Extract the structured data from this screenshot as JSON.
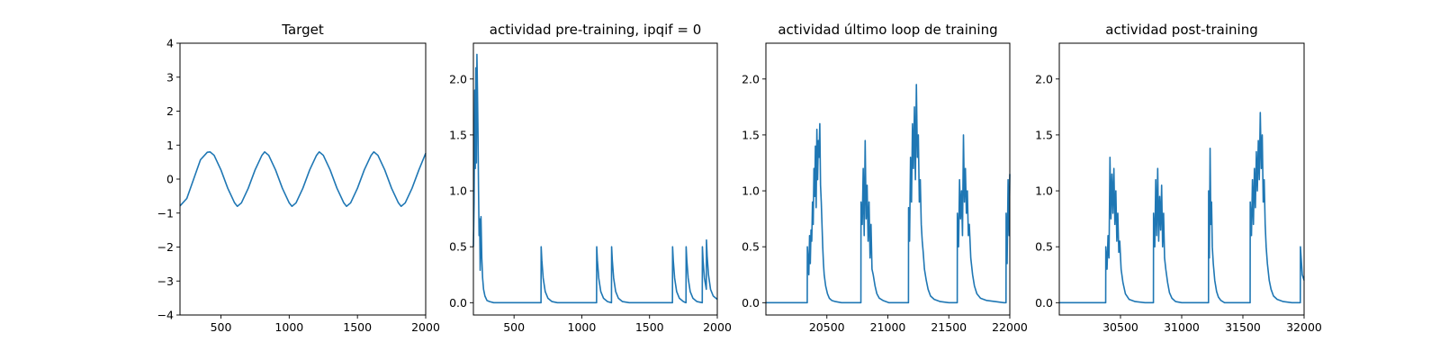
{
  "chart_data": [
    {
      "type": "line",
      "title": "Target",
      "xlim": [
        200,
        2000
      ],
      "ylim": [
        -4,
        4
      ],
      "xticks": [
        500,
        1000,
        1500,
        2000
      ],
      "yticks": [
        -4,
        -3,
        -2,
        -1,
        0,
        1,
        2,
        3,
        4
      ],
      "x": [
        200,
        250,
        300,
        350,
        400,
        420,
        450,
        500,
        550,
        600,
        620,
        650,
        700,
        750,
        800,
        820,
        850,
        900,
        950,
        1000,
        1020,
        1050,
        1100,
        1150,
        1200,
        1220,
        1250,
        1300,
        1350,
        1400,
        1420,
        1450,
        1500,
        1550,
        1600,
        1620,
        1650,
        1700,
        1750,
        1800,
        1820,
        1850,
        1900,
        1950,
        2000
      ],
      "series": [
        {
          "values": [
            -0.79,
            -0.57,
            0.0,
            0.57,
            0.79,
            0.8,
            0.7,
            0.27,
            -0.27,
            -0.7,
            -0.8,
            -0.7,
            -0.27,
            0.27,
            0.7,
            0.8,
            0.7,
            0.27,
            -0.27,
            -0.7,
            -0.8,
            -0.7,
            -0.27,
            0.27,
            0.7,
            0.8,
            0.7,
            0.27,
            -0.27,
            -0.7,
            -0.8,
            -0.7,
            -0.27,
            0.27,
            0.7,
            0.8,
            0.7,
            0.27,
            -0.27,
            -0.7,
            -0.8,
            -0.7,
            -0.27,
            0.27,
            0.76
          ]
        }
      ]
    },
    {
      "type": "line",
      "title": "actividad pre-training, ipqif = 0",
      "xlim": [
        200,
        2000
      ],
      "ylim": [
        -0.11,
        2.32
      ],
      "xticks": [
        500,
        1000,
        1500,
        2000
      ],
      "yticks": [
        0.0,
        0.5,
        1.0,
        1.5,
        2.0
      ],
      "x": [
        200,
        205,
        210,
        214,
        218,
        222,
        226,
        230,
        234,
        238,
        242,
        246,
        250,
        256,
        262,
        268,
        275,
        285,
        300,
        320,
        350,
        400,
        500,
        600,
        699,
        700,
        705,
        715,
        730,
        750,
        780,
        820,
        900,
        1000,
        1109,
        1110,
        1115,
        1125,
        1140,
        1160,
        1190,
        1219,
        1220,
        1225,
        1235,
        1250,
        1270,
        1300,
        1350,
        1450,
        1550,
        1669,
        1670,
        1675,
        1685,
        1700,
        1720,
        1750,
        1769,
        1770,
        1775,
        1785,
        1800,
        1820,
        1850,
        1889,
        1890,
        1895,
        1905,
        1919,
        1920,
        1925,
        1935,
        1950,
        1970,
        2000
      ],
      "series": [
        {
          "values": [
            0.5,
            0.9,
            1.9,
            1.2,
            2.1,
            1.25,
            2.22,
            1.9,
            1.5,
            1.0,
            0.6,
            0.75,
            0.29,
            0.77,
            0.4,
            0.22,
            0.12,
            0.06,
            0.02,
            0.01,
            0.0,
            0.0,
            0.0,
            0.0,
            0.0,
            0.5,
            0.38,
            0.22,
            0.1,
            0.04,
            0.01,
            0.0,
            0.0,
            0.0,
            0.0,
            0.5,
            0.38,
            0.22,
            0.1,
            0.04,
            0.01,
            0.0,
            0.5,
            0.38,
            0.22,
            0.1,
            0.04,
            0.01,
            0.0,
            0.0,
            0.0,
            0.0,
            0.5,
            0.38,
            0.22,
            0.1,
            0.04,
            0.01,
            0.0,
            0.5,
            0.38,
            0.22,
            0.1,
            0.04,
            0.01,
            0.0,
            0.5,
            0.38,
            0.22,
            0.12,
            0.56,
            0.42,
            0.25,
            0.12,
            0.06,
            0.03
          ]
        }
      ]
    },
    {
      "type": "line",
      "title": "actividad último loop de training",
      "xlim": [
        20000,
        22000
      ],
      "ylim": [
        -0.11,
        2.32
      ],
      "xticks": [
        20500,
        21000,
        21500,
        22000
      ],
      "yticks": [
        0.0,
        0.5,
        1.0,
        1.5,
        2.0
      ],
      "x": [
        20000,
        20200,
        20339,
        20340,
        20352,
        20358,
        20364,
        20370,
        20376,
        20382,
        20388,
        20394,
        20400,
        20406,
        20412,
        20418,
        20424,
        20430,
        20436,
        20442,
        20448,
        20454,
        20460,
        20466,
        20472,
        20478,
        20490,
        20505,
        20520,
        20540,
        20570,
        20620,
        20700,
        20779,
        20780,
        20790,
        20798,
        20806,
        20814,
        20822,
        20830,
        20838,
        20846,
        20854,
        20862,
        20870,
        20880,
        20895,
        20910,
        20930,
        20960,
        21010,
        21100,
        21169,
        21170,
        21178,
        21186,
        21194,
        21202,
        21210,
        21218,
        21226,
        21234,
        21242,
        21250,
        21258,
        21266,
        21274,
        21282,
        21290,
        21300,
        21315,
        21330,
        21350,
        21380,
        21430,
        21500,
        21569,
        21570,
        21580,
        21588,
        21596,
        21604,
        21612,
        21620,
        21628,
        21636,
        21644,
        21652,
        21660,
        21668,
        21680,
        21695,
        21710,
        21730,
        21760,
        21810,
        21880,
        21950,
        21969,
        21970,
        21978,
        21986,
        21994,
        22000
      ],
      "series": [
        {
          "values": [
            0.0,
            0.0,
            0.0,
            0.5,
            0.25,
            0.6,
            0.35,
            0.65,
            0.55,
            0.9,
            0.7,
            1.2,
            0.95,
            1.4,
            0.85,
            1.55,
            1.1,
            1.45,
            1.3,
            1.6,
            1.05,
            0.9,
            0.7,
            0.5,
            0.35,
            0.25,
            0.15,
            0.08,
            0.04,
            0.02,
            0.01,
            0.0,
            0.0,
            0.0,
            0.9,
            0.7,
            1.2,
            0.6,
            1.45,
            0.75,
            1.05,
            0.55,
            0.9,
            0.4,
            0.7,
            0.3,
            0.25,
            0.15,
            0.08,
            0.04,
            0.02,
            0.0,
            0.0,
            0.0,
            0.85,
            0.55,
            1.3,
            0.9,
            1.6,
            1.2,
            1.75,
            1.1,
            1.95,
            1.3,
            1.5,
            0.9,
            1.1,
            0.7,
            0.55,
            0.45,
            0.3,
            0.2,
            0.12,
            0.06,
            0.03,
            0.01,
            0.0,
            0.0,
            0.8,
            0.5,
            1.1,
            0.75,
            1.0,
            0.6,
            1.5,
            0.9,
            1.2,
            0.8,
            1.0,
            0.6,
            0.7,
            0.4,
            0.25,
            0.15,
            0.08,
            0.04,
            0.02,
            0.01,
            0.0,
            0.0,
            0.8,
            0.35,
            1.1,
            0.6,
            1.15
          ]
        }
      ]
    },
    {
      "type": "line",
      "title": "actividad post-training",
      "xlim": [
        30000,
        32000
      ],
      "ylim": [
        -0.11,
        2.32
      ],
      "xticks": [
        30500,
        31000,
        31500,
        32000
      ],
      "yticks": [
        0.0,
        0.5,
        1.0,
        1.5,
        2.0
      ],
      "x": [
        30000,
        30200,
        30379,
        30380,
        30390,
        30398,
        30406,
        30414,
        30422,
        30430,
        30438,
        30446,
        30454,
        30462,
        30470,
        30478,
        30486,
        30494,
        30505,
        30520,
        30540,
        30570,
        30620,
        30700,
        30769,
        30770,
        30780,
        30788,
        30796,
        30804,
        30812,
        30820,
        30828,
        30836,
        30844,
        30852,
        30860,
        30870,
        30885,
        30900,
        30920,
        30950,
        31000,
        31100,
        31219,
        31220,
        31226,
        31232,
        31238,
        31244,
        31250,
        31258,
        31270,
        31285,
        31300,
        31320,
        31350,
        31400,
        31500,
        31559,
        31560,
        31570,
        31578,
        31586,
        31594,
        31602,
        31610,
        31618,
        31626,
        31634,
        31642,
        31650,
        31658,
        31666,
        31674,
        31682,
        31690,
        31700,
        31715,
        31730,
        31750,
        31780,
        31830,
        31900,
        31969,
        31970,
        31985,
        32000
      ],
      "series": [
        {
          "values": [
            0.0,
            0.0,
            0.0,
            0.5,
            0.3,
            0.6,
            0.4,
            1.3,
            0.75,
            1.15,
            0.8,
            1.2,
            0.7,
            1.0,
            0.55,
            0.8,
            0.45,
            0.55,
            0.3,
            0.18,
            0.08,
            0.03,
            0.01,
            0.0,
            0.0,
            0.8,
            0.5,
            1.1,
            0.6,
            1.2,
            0.55,
            0.95,
            0.65,
            1.05,
            0.5,
            0.8,
            0.4,
            0.3,
            0.18,
            0.09,
            0.04,
            0.01,
            0.0,
            0.0,
            0.0,
            1.0,
            0.4,
            1.38,
            0.7,
            0.9,
            0.5,
            0.35,
            0.2,
            0.1,
            0.05,
            0.02,
            0.0,
            0.0,
            0.0,
            0.0,
            0.9,
            0.6,
            1.1,
            0.7,
            1.2,
            0.85,
            1.35,
            1.0,
            1.45,
            1.1,
            1.7,
            1.2,
            1.5,
            0.9,
            1.1,
            0.7,
            0.5,
            0.35,
            0.2,
            0.12,
            0.06,
            0.03,
            0.01,
            0.0,
            0.0,
            0.5,
            0.25,
            0.2
          ]
        }
      ]
    }
  ]
}
